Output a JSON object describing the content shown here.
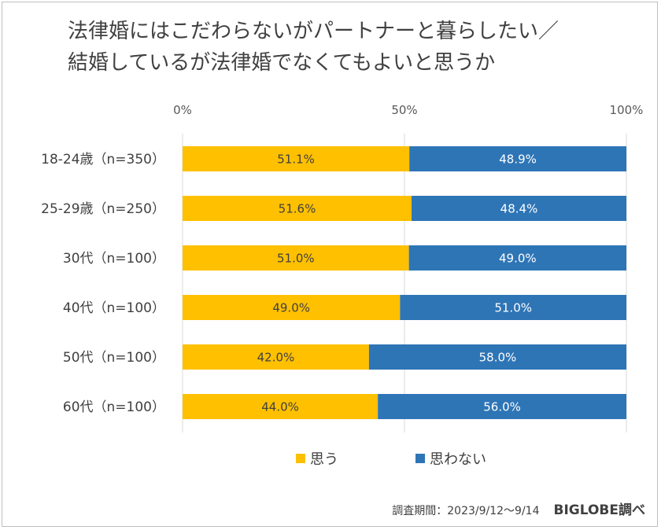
{
  "title_line1": "法律婚にはこだわらないがパートナーと暮らしたい／",
  "title_line2": "結婚しているが法律婚でなくてもよいと思うか",
  "chart_data": {
    "type": "bar",
    "orientation": "horizontal",
    "stacked": true,
    "categories": [
      "18-24歳（n=350）",
      "25-29歳（n=250）",
      "30代（n=100）",
      "40代（n=100）",
      "50代（n=100）",
      "60代（n=100）"
    ],
    "series": [
      {
        "name": "思う",
        "color": "#FFC000",
        "values": [
          51.1,
          51.6,
          51.0,
          49.0,
          42.0,
          44.0
        ]
      },
      {
        "name": "思わない",
        "color": "#2E75B6",
        "values": [
          48.9,
          48.4,
          49.0,
          51.0,
          58.0,
          56.0
        ]
      }
    ],
    "value_labels": [
      [
        "51.1%",
        "51.6%",
        "51.0%",
        "49.0%",
        "42.0%",
        "44.0%"
      ],
      [
        "48.9%",
        "48.4%",
        "49.0%",
        "51.0%",
        "58.0%",
        "56.0%"
      ]
    ],
    "xticks": [
      "0%",
      "50%",
      "100%"
    ],
    "xtick_values": [
      0,
      50,
      100
    ],
    "xlim": [
      0,
      100
    ],
    "grid": true,
    "legend_position": "bottom"
  },
  "footer": {
    "period": "調査期間：2023/9/12～9/14",
    "brand": "BIGLOBE調べ"
  }
}
